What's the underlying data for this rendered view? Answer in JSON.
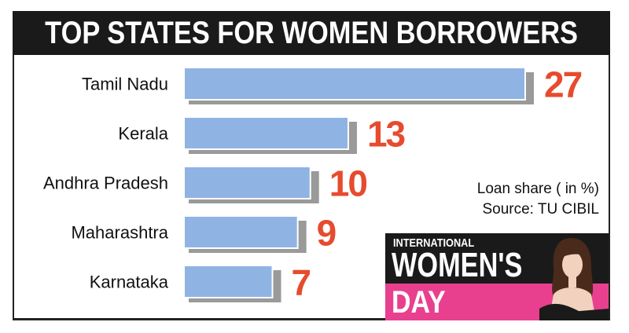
{
  "title": "TOP STATES FOR WOMEN BORROWERS",
  "note": {
    "line1": "Loan share ( in %)",
    "line2": "Source: TU CIBIL"
  },
  "badge": {
    "line1": "INTERNATIONAL",
    "line2": "WOMEN'S",
    "line3": "DAY"
  },
  "colors": {
    "bar": "#8fb4e3",
    "bar_shadow": "#9a9a9a",
    "value": "#e64b2e",
    "title_bg": "#1a1a1a",
    "badge_pink": "#e8408f"
  },
  "chart_data": {
    "type": "bar",
    "orientation": "horizontal",
    "categories": [
      "Tamil Nadu",
      "Kerala",
      "Andhra Pradesh",
      "Maharashtra",
      "Karnataka"
    ],
    "values": [
      27,
      13,
      10,
      9,
      7
    ],
    "title": "TOP STATES FOR WOMEN BORROWERS",
    "xlabel": "",
    "ylabel": "",
    "xlim": [
      0,
      27
    ],
    "grid": false
  }
}
